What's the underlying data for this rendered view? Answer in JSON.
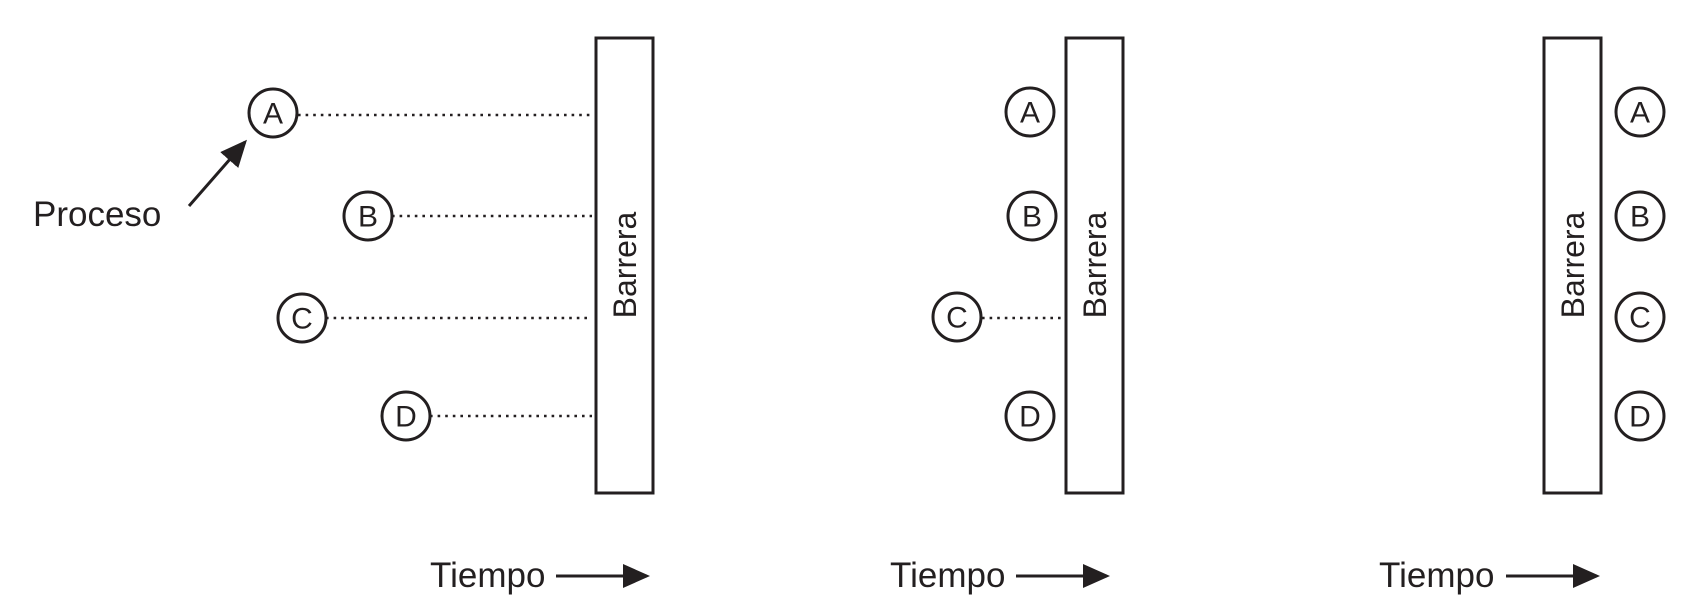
{
  "labels": {
    "process": "Proceso",
    "barrier": "Barrera",
    "time": "Tiempo"
  },
  "processes": [
    "A",
    "B",
    "C",
    "D"
  ],
  "panels": [
    {
      "barrier": "Barrera",
      "time": "Tiempo"
    },
    {
      "barrier": "Barrera",
      "time": "Tiempo"
    },
    {
      "barrier": "Barrera",
      "time": "Tiempo"
    }
  ],
  "colors": {
    "ink": "#231f20",
    "background": "#ffffff"
  }
}
